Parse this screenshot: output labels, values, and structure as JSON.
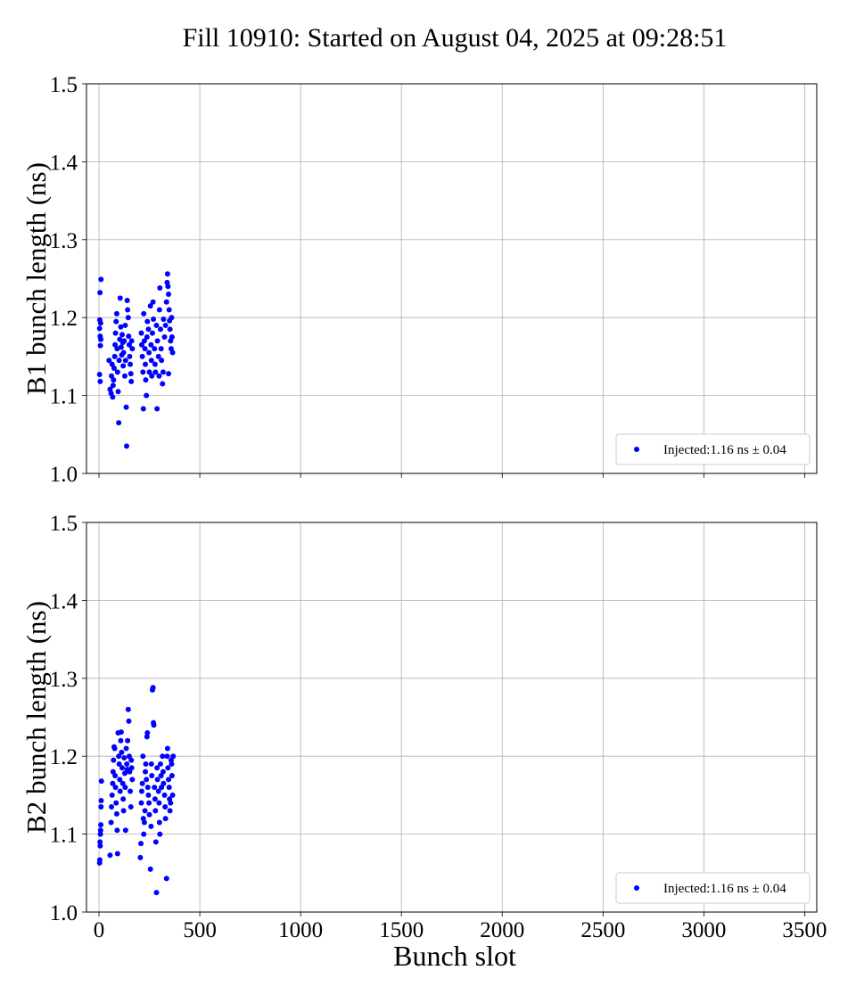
{
  "chart_data": {
    "type": "scatter",
    "title": "Fill 10910: Started on August 04, 2025 at 09:28:51",
    "xlabel": "Bunch slot",
    "xlim": [
      -62,
      3560
    ],
    "xticks": [
      0,
      500,
      1000,
      1500,
      2000,
      2500,
      3000,
      3500
    ],
    "xtick_labels": [
      "0",
      "500",
      "1000",
      "1500",
      "2000",
      "2500",
      "3000",
      "3500"
    ],
    "grid": true,
    "subplots": [
      {
        "ylabel": "B1 bunch length (ns)",
        "ylim": [
          1.0,
          1.5
        ],
        "yticks": [
          1.0,
          1.1,
          1.2,
          1.3,
          1.4,
          1.5
        ],
        "ytick_labels": [
          "1.0",
          "1.1",
          "1.2",
          "1.3",
          "1.4",
          "1.5"
        ],
        "legend": {
          "label": "Injected:1.16 ns ± 0.04",
          "location": "lower right"
        },
        "color": "#0000ff",
        "points": [
          [
            5,
            1.232
          ],
          [
            10,
            1.249
          ],
          [
            4,
            1.197
          ],
          [
            8,
            1.193
          ],
          [
            3,
            1.186
          ],
          [
            6,
            1.176
          ],
          [
            9,
            1.172
          ],
          [
            7,
            1.164
          ],
          [
            3,
            1.127
          ],
          [
            6,
            1.118
          ],
          [
            50,
            1.145
          ],
          [
            55,
            1.108
          ],
          [
            60,
            1.103
          ],
          [
            62,
            1.125
          ],
          [
            65,
            1.14
          ],
          [
            68,
            1.098
          ],
          [
            70,
            1.113
          ],
          [
            72,
            1.12
          ],
          [
            75,
            1.135
          ],
          [
            78,
            1.15
          ],
          [
            80,
            1.165
          ],
          [
            82,
            1.18
          ],
          [
            85,
            1.195
          ],
          [
            88,
            1.205
          ],
          [
            90,
            1.16
          ],
          [
            92,
            1.13
          ],
          [
            95,
            1.105
          ],
          [
            98,
            1.065
          ],
          [
            100,
            1.145
          ],
          [
            103,
            1.172
          ],
          [
            105,
            1.225
          ],
          [
            108,
            1.188
          ],
          [
            110,
            1.162
          ],
          [
            113,
            1.152
          ],
          [
            115,
            1.178
          ],
          [
            118,
            1.168
          ],
          [
            120,
            1.138
          ],
          [
            122,
            1.155
          ],
          [
            125,
            1.17
          ],
          [
            128,
            1.125
          ],
          [
            130,
            1.19
          ],
          [
            132,
            1.145
          ],
          [
            135,
            1.085
          ],
          [
            137,
            1.035
          ],
          [
            140,
            1.222
          ],
          [
            142,
            1.21
          ],
          [
            145,
            1.2
          ],
          [
            147,
            1.176
          ],
          [
            150,
            1.165
          ],
          [
            152,
            1.15
          ],
          [
            155,
            1.14
          ],
          [
            158,
            1.128
          ],
          [
            160,
            1.118
          ],
          [
            162,
            1.17
          ],
          [
            165,
            1.16
          ],
          [
            210,
            1.18
          ],
          [
            212,
            1.165
          ],
          [
            215,
            1.15
          ],
          [
            218,
            1.13
          ],
          [
            220,
            1.083
          ],
          [
            222,
            1.205
          ],
          [
            225,
            1.17
          ],
          [
            228,
            1.16
          ],
          [
            230,
            1.14
          ],
          [
            232,
            1.12
          ],
          [
            235,
            1.1
          ],
          [
            238,
            1.175
          ],
          [
            240,
            1.195
          ],
          [
            245,
            1.185
          ],
          [
            248,
            1.155
          ],
          [
            250,
            1.13
          ],
          [
            255,
            1.215
          ],
          [
            258,
            1.165
          ],
          [
            260,
            1.145
          ],
          [
            262,
            1.125
          ],
          [
            265,
            1.18
          ],
          [
            268,
            1.22
          ],
          [
            270,
            1.198
          ],
          [
            275,
            1.16
          ],
          [
            278,
            1.14
          ],
          [
            280,
            1.13
          ],
          [
            285,
            1.19
          ],
          [
            288,
            1.083
          ],
          [
            290,
            1.17
          ],
          [
            295,
            1.15
          ],
          [
            298,
            1.125
          ],
          [
            300,
            1.21
          ],
          [
            302,
            1.238
          ],
          [
            305,
            1.185
          ],
          [
            308,
            1.16
          ],
          [
            310,
            1.145
          ],
          [
            315,
            1.115
          ],
          [
            318,
            1.13
          ],
          [
            320,
            1.198
          ],
          [
            325,
            1.175
          ],
          [
            330,
            1.19
          ],
          [
            335,
            1.22
          ],
          [
            338,
            1.245
          ],
          [
            340,
            1.256
          ],
          [
            342,
            1.24
          ],
          [
            345,
            1.23
          ],
          [
            348,
            1.21
          ],
          [
            350,
            1.196
          ],
          [
            352,
            1.185
          ],
          [
            355,
            1.17
          ],
          [
            358,
            1.16
          ],
          [
            360,
            1.2
          ],
          [
            362,
            1.175
          ],
          [
            365,
            1.155
          ],
          [
            345,
            1.128
          ]
        ]
      },
      {
        "ylabel": "B2 bunch length (ns)",
        "ylim": [
          1.0,
          1.5
        ],
        "yticks": [
          1.0,
          1.1,
          1.2,
          1.3,
          1.4,
          1.5
        ],
        "ytick_labels": [
          "1.0",
          "1.1",
          "1.2",
          "1.3",
          "1.4",
          "1.5"
        ],
        "legend": {
          "label": "Injected:1.16 ns ± 0.04",
          "location": "lower right"
        },
        "color": "#0000ff",
        "points": [
          [
            3,
            1.063
          ],
          [
            4,
            1.067
          ],
          [
            5,
            1.09
          ],
          [
            6,
            1.085
          ],
          [
            7,
            1.1
          ],
          [
            8,
            1.105
          ],
          [
            9,
            1.112
          ],
          [
            10,
            1.135
          ],
          [
            11,
            1.143
          ],
          [
            12,
            1.168
          ],
          [
            55,
            1.073
          ],
          [
            60,
            1.115
          ],
          [
            62,
            1.135
          ],
          [
            65,
            1.15
          ],
          [
            68,
            1.165
          ],
          [
            70,
            1.18
          ],
          [
            72,
            1.195
          ],
          [
            75,
            1.212
          ],
          [
            78,
            1.21
          ],
          [
            80,
            1.175
          ],
          [
            82,
            1.16
          ],
          [
            85,
            1.14
          ],
          [
            88,
            1.126
          ],
          [
            90,
            1.105
          ],
          [
            92,
            1.075
          ],
          [
            95,
            1.23
          ],
          [
            98,
            1.2
          ],
          [
            100,
            1.19
          ],
          [
            103,
            1.17
          ],
          [
            105,
            1.155
          ],
          [
            108,
            1.22
          ],
          [
            110,
            1.231
          ],
          [
            112,
            1.205
          ],
          [
            115,
            1.185
          ],
          [
            118,
            1.165
          ],
          [
            120,
            1.145
          ],
          [
            122,
            1.13
          ],
          [
            125,
            1.198
          ],
          [
            128,
            1.178
          ],
          [
            130,
            1.16
          ],
          [
            132,
            1.105
          ],
          [
            135,
            1.21
          ],
          [
            138,
            1.19
          ],
          [
            140,
            1.183
          ],
          [
            142,
            1.22
          ],
          [
            145,
            1.26
          ],
          [
            148,
            1.245
          ],
          [
            150,
            1.2
          ],
          [
            152,
            1.18
          ],
          [
            155,
            1.155
          ],
          [
            158,
            1.135
          ],
          [
            160,
            1.195
          ],
          [
            162,
            1.185
          ],
          [
            165,
            1.17
          ],
          [
            205,
            1.07
          ],
          [
            208,
            1.088
          ],
          [
            210,
            1.14
          ],
          [
            212,
            1.155
          ],
          [
            215,
            1.165
          ],
          [
            218,
            1.2
          ],
          [
            220,
            1.12
          ],
          [
            222,
            1.1
          ],
          [
            225,
            1.115
          ],
          [
            228,
            1.13
          ],
          [
            230,
            1.18
          ],
          [
            232,
            1.19
          ],
          [
            235,
            1.17
          ],
          [
            238,
            1.225
          ],
          [
            240,
            1.23
          ],
          [
            242,
            1.16
          ],
          [
            245,
            1.15
          ],
          [
            248,
            1.14
          ],
          [
            250,
            1.125
          ],
          [
            255,
            1.055
          ],
          [
            258,
            1.11
          ],
          [
            260,
            1.19
          ],
          [
            262,
            1.175
          ],
          [
            265,
            1.285
          ],
          [
            268,
            1.288
          ],
          [
            270,
            1.243
          ],
          [
            272,
            1.24
          ],
          [
            275,
            1.16
          ],
          [
            278,
            1.145
          ],
          [
            280,
            1.13
          ],
          [
            282,
            1.09
          ],
          [
            285,
            1.025
          ],
          [
            288,
            1.185
          ],
          [
            290,
            1.17
          ],
          [
            295,
            1.155
          ],
          [
            298,
            1.14
          ],
          [
            300,
            1.115
          ],
          [
            302,
            1.1
          ],
          [
            305,
            1.19
          ],
          [
            308,
            1.175
          ],
          [
            310,
            1.16
          ],
          [
            315,
            1.2
          ],
          [
            318,
            1.18
          ],
          [
            320,
            1.165
          ],
          [
            325,
            1.15
          ],
          [
            328,
            1.135
          ],
          [
            330,
            1.12
          ],
          [
            335,
            1.043
          ],
          [
            338,
            1.2
          ],
          [
            340,
            1.21
          ],
          [
            342,
            1.185
          ],
          [
            345,
            1.17
          ],
          [
            348,
            1.16
          ],
          [
            350,
            1.145
          ],
          [
            355,
            1.14
          ],
          [
            358,
            1.195
          ],
          [
            360,
            1.19
          ],
          [
            362,
            1.175
          ],
          [
            365,
            1.15
          ],
          [
            368,
            1.2
          ],
          [
            352,
            1.13
          ]
        ]
      }
    ]
  }
}
